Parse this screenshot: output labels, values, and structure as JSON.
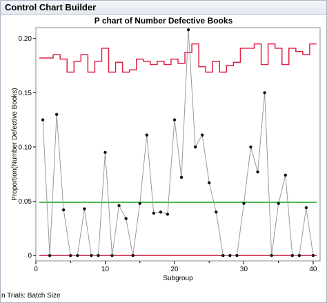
{
  "window": {
    "title": "Control Chart Builder"
  },
  "footer": {
    "text": "n Trials: Batch Size"
  },
  "chart_data": {
    "type": "line",
    "title": "P chart of Number Defective Books",
    "xlabel": "Subgroup",
    "ylabel": "Proportion(Number Defective Books)",
    "xlim": [
      0,
      41
    ],
    "ylim": [
      -0.005,
      0.21
    ],
    "xticks": [
      0,
      10,
      20,
      30,
      40
    ],
    "yticks": [
      0,
      0.05,
      0.1,
      0.15,
      0.2
    ],
    "ytick_labels": [
      "0",
      "0.05",
      "0.10",
      "0.15",
      "0.20"
    ],
    "grid": false,
    "center_line": {
      "value": 0.049,
      "color": "#22aa22"
    },
    "lcl": {
      "value": 0,
      "color": "#cc2244"
    },
    "series": [
      {
        "color": "#999999",
        "marker_color": "#111111",
        "x": [
          1,
          2,
          3,
          4,
          5,
          6,
          7,
          8,
          9,
          10,
          11,
          12,
          13,
          14,
          15,
          16,
          17,
          18,
          19,
          20,
          21,
          22,
          23,
          24,
          25,
          26,
          27,
          28,
          29,
          30,
          31,
          32,
          33,
          34,
          35,
          36,
          37,
          38,
          39,
          40
        ],
        "values": [
          0.125,
          0,
          0.13,
          0.042,
          0,
          0,
          0.043,
          0,
          0,
          0.095,
          0,
          0.046,
          0.034,
          0,
          0.048,
          0.111,
          0.039,
          0.04,
          0.038,
          0.125,
          0.072,
          0.208,
          0.1,
          0.111,
          0.067,
          0.04,
          0,
          0,
          0,
          0.048,
          0.1,
          0.077,
          0.15,
          0,
          0.048,
          0.074,
          0,
          0,
          0.044,
          0
        ]
      }
    ],
    "ucl": {
      "color": "#dd2244",
      "values": [
        0.182,
        0.182,
        0.185,
        0.181,
        0.169,
        0.179,
        0.185,
        0.169,
        0.179,
        0.191,
        0.169,
        0.178,
        0.169,
        0.171,
        0.181,
        0.179,
        0.176,
        0.179,
        0.176,
        0.181,
        0.177,
        0.187,
        0.195,
        0.174,
        0.169,
        0.179,
        0.169,
        0.175,
        0.178,
        0.191,
        0.191,
        0.195,
        0.176,
        0.195,
        0.191,
        0.176,
        0.191,
        0.188,
        0.185,
        0.195
      ]
    }
  }
}
